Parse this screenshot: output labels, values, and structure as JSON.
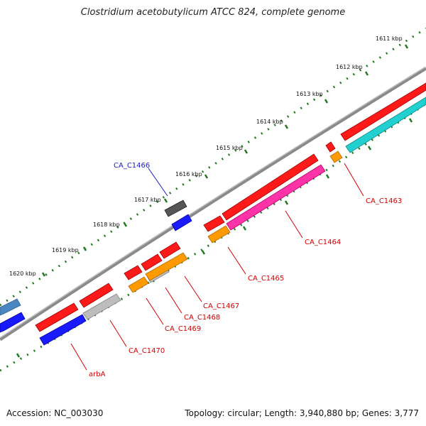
{
  "title": "Clostridium acetobutylicum ATCC 824, complete genome",
  "footer": {
    "accession": "Accession: NC_003030",
    "topology": "Topology: circular; Length: 3,940,880 bp; Genes: 3,777"
  },
  "ruler_labels": [
    "1611 kbp",
    "1612 kbp",
    "1613 kbp",
    "1614 kbp",
    "1615 kbp",
    "1616 kbp",
    "1617 kbp",
    "1618 kbp",
    "1619 kbp",
    "1620 kbp"
  ],
  "gene_labels": [
    {
      "id": "CA_C1463",
      "text": "CA_C1463",
      "color": "#d40000"
    },
    {
      "id": "CA_C1464",
      "text": "CA_C1464",
      "color": "#d40000"
    },
    {
      "id": "CA_C1465",
      "text": "CA_C1465",
      "color": "#d40000"
    },
    {
      "id": "CA_C1466",
      "text": "CA_C1466",
      "color": "#1a1acc"
    },
    {
      "id": "CA_C1467",
      "text": "CA_C1467",
      "color": "#d40000"
    },
    {
      "id": "CA_C1468",
      "text": "CA_C1468",
      "color": "#d40000"
    },
    {
      "id": "CA_C1469",
      "text": "CA_C1469",
      "color": "#d40000"
    },
    {
      "id": "CA_C1470",
      "text": "CA_C1470",
      "color": "#d40000"
    },
    {
      "id": "arbA",
      "text": "arbA",
      "color": "#d40000"
    }
  ],
  "colors": {
    "backbone": "#8a8a8a",
    "ruler": "#1e7a1e",
    "cds_red": "#ff1a1a",
    "cds_blue": "#1a1aff",
    "cds_magenta": "#ff33a8",
    "cds_orange": "#ff9a00",
    "cds_cyan": "#22d0d0",
    "cds_gray": "#bdbdbd",
    "cds_dark": "#555555",
    "cds_steelblue": "#4a86c0"
  }
}
